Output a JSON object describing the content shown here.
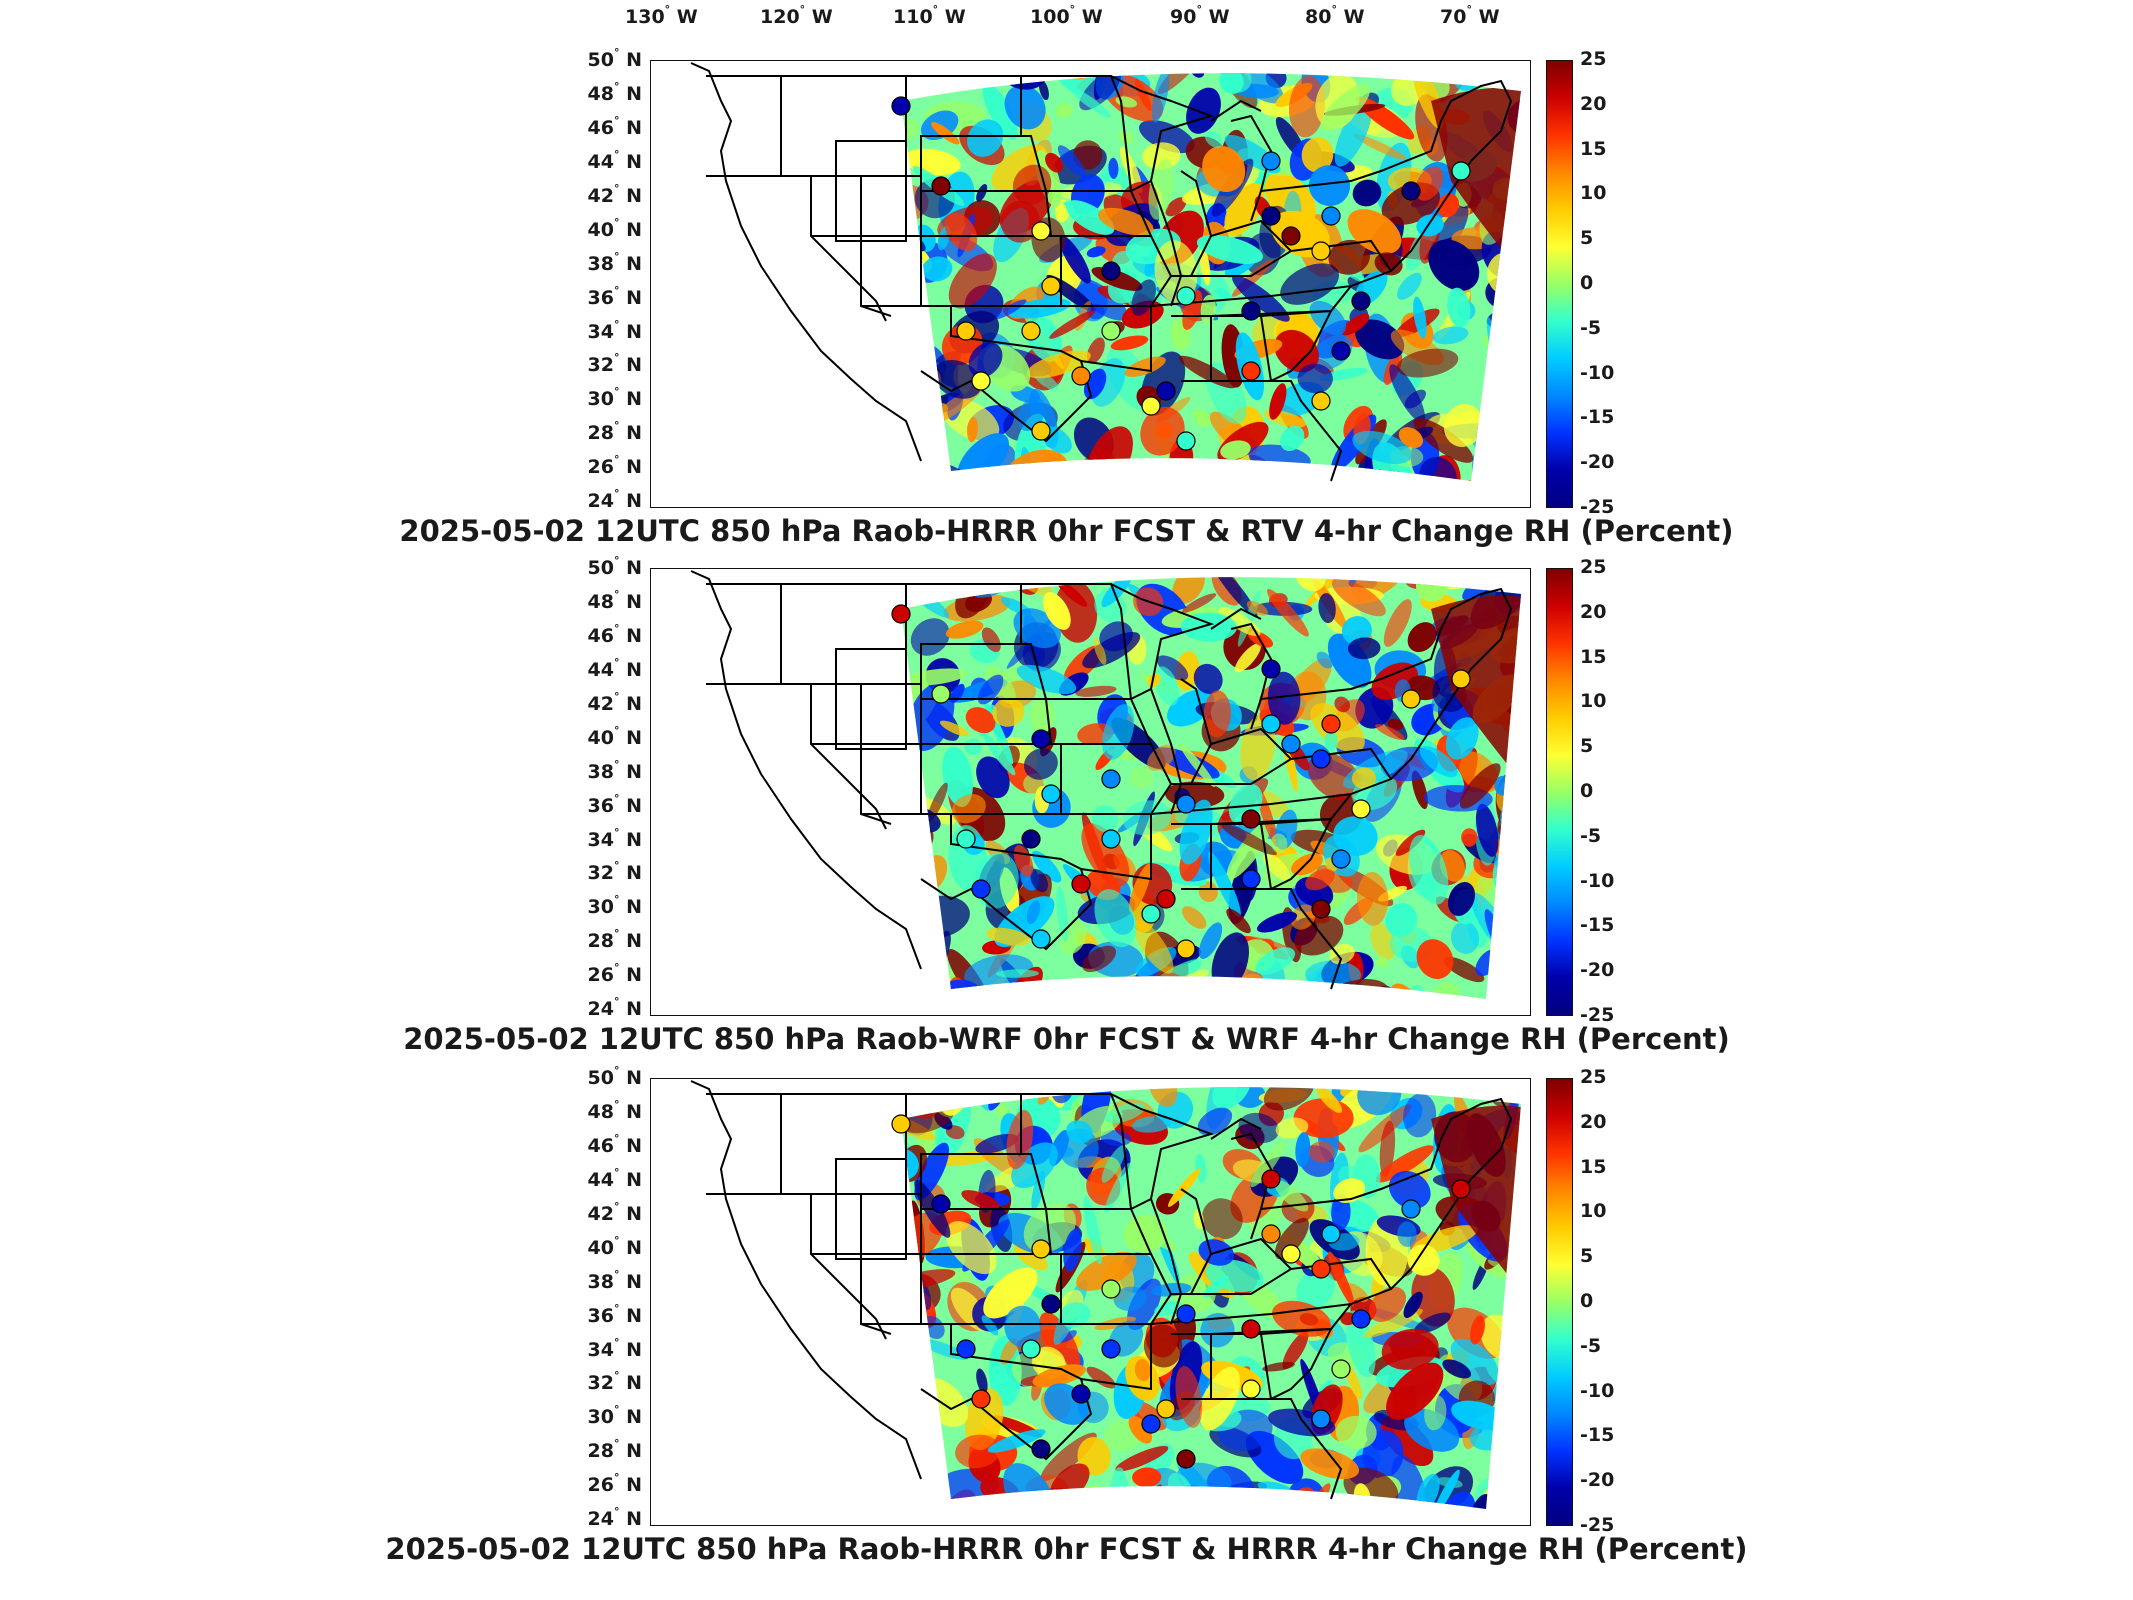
{
  "longitude_labels": [
    {
      "deg": "130",
      "hem": "W"
    },
    {
      "deg": "120",
      "hem": "W"
    },
    {
      "deg": "110",
      "hem": "W"
    },
    {
      "deg": "100",
      "hem": "W"
    },
    {
      "deg": "90",
      "hem": "W"
    },
    {
      "deg": "80",
      "hem": "W"
    },
    {
      "deg": "70",
      "hem": "W"
    }
  ],
  "latitude_labels": [
    {
      "deg": "50",
      "hem": "N"
    },
    {
      "deg": "48",
      "hem": "N"
    },
    {
      "deg": "46",
      "hem": "N"
    },
    {
      "deg": "44",
      "hem": "N"
    },
    {
      "deg": "42",
      "hem": "N"
    },
    {
      "deg": "40",
      "hem": "N"
    },
    {
      "deg": "38",
      "hem": "N"
    },
    {
      "deg": "36",
      "hem": "N"
    },
    {
      "deg": "34",
      "hem": "N"
    },
    {
      "deg": "32",
      "hem": "N"
    },
    {
      "deg": "30",
      "hem": "N"
    },
    {
      "deg": "28",
      "hem": "N"
    },
    {
      "deg": "26",
      "hem": "N"
    },
    {
      "deg": "24",
      "hem": "N"
    }
  ],
  "colorbar": {
    "ticks": [
      "25",
      "20",
      "15",
      "10",
      "5",
      "0",
      "-5",
      "-10",
      "-15",
      "-20",
      "-25"
    ],
    "colors": [
      "#7f0000",
      "#cc0000",
      "#ff3300",
      "#ff8800",
      "#ffcc00",
      "#ffff33",
      "#99ff66",
      "#33ffcc",
      "#00ccff",
      "#0088ff",
      "#0033ff",
      "#0000aa",
      "#000080"
    ]
  },
  "panels": [
    {
      "title": "2025-05-02 12UTC 850 hPa Raob-HRRR 0hr FCST & RTV 4-hr Change RH (Percent)"
    },
    {
      "title": "2025-05-02 12UTC 850 hPa Raob-WRF 0hr FCST & WRF 4-hr Change RH (Percent)"
    },
    {
      "title": "2025-05-02 12UTC 850 hPa Raob-HRRR 0hr FCST & HRRR 4-hr Change RH (Percent)"
    }
  ]
}
